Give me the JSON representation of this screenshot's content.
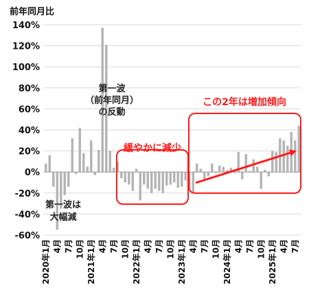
{
  "chart_data": {
    "type": "bar",
    "y_unit_label": "前年同月比",
    "ylim": [
      -60,
      140
    ],
    "y_ticks": [
      {
        "value": 140,
        "label": "140%"
      },
      {
        "value": 120,
        "label": "120%"
      },
      {
        "value": 100,
        "label": "100%"
      },
      {
        "value": 80,
        "label": "80%"
      },
      {
        "value": 60,
        "label": "60%"
      },
      {
        "value": 40,
        "label": "40%"
      },
      {
        "value": 20,
        "label": "20%"
      },
      {
        "value": 0,
        "label": "0%"
      },
      {
        "value": -20,
        "label": "-20%"
      },
      {
        "value": -40,
        "label": "-40%"
      },
      {
        "value": -60,
        "label": "-60%"
      }
    ],
    "grid": true,
    "x_ticks": [
      {
        "index": 0,
        "label": "2020年1月"
      },
      {
        "index": 3,
        "label": "4月"
      },
      {
        "index": 6,
        "label": "7月"
      },
      {
        "index": 9,
        "label": "10月"
      },
      {
        "index": 12,
        "label": "2021年1月"
      },
      {
        "index": 15,
        "label": "4月"
      },
      {
        "index": 18,
        "label": "7月"
      },
      {
        "index": 21,
        "label": "10月"
      },
      {
        "index": 24,
        "label": "2022年1月"
      },
      {
        "index": 27,
        "label": "4月"
      },
      {
        "index": 30,
        "label": "7月"
      },
      {
        "index": 33,
        "label": "10月"
      },
      {
        "index": 36,
        "label": "2023年1月"
      },
      {
        "index": 39,
        "label": "4月"
      },
      {
        "index": 42,
        "label": "7月"
      },
      {
        "index": 45,
        "label": "10月"
      },
      {
        "index": 48,
        "label": "2024年1月"
      },
      {
        "index": 51,
        "label": "4月"
      },
      {
        "index": 54,
        "label": "7月"
      },
      {
        "index": 57,
        "label": "10月"
      },
      {
        "index": 60,
        "label": "2025年1月"
      },
      {
        "index": 63,
        "label": "4月"
      },
      {
        "index": 66,
        "label": "7月"
      }
    ],
    "values": [
      8,
      16,
      -14,
      -55,
      -35,
      -22,
      -14,
      32,
      -2,
      42,
      18,
      5,
      30,
      -3,
      21,
      137,
      121,
      20,
      4,
      10,
      -6,
      -10,
      -12,
      -18,
      3,
      -27,
      -12,
      -16,
      -20,
      -16,
      -18,
      -20,
      -13,
      -12,
      -10,
      -15,
      -14,
      -8,
      -16,
      -20,
      8,
      3,
      -8,
      -4,
      8,
      -1,
      6,
      5,
      2,
      4,
      -1,
      19,
      -7,
      17,
      1,
      12,
      5,
      -16,
      2,
      -4,
      20,
      19,
      32,
      30,
      25,
      38,
      30,
      44
    ],
    "colors": {
      "bar": "#b4b4b4",
      "grid": "#d9d9d9",
      "accent": "#ff1a1a",
      "axis": "#888888"
    },
    "annotations": {
      "first_wave_rebound": [
        "第一波",
        "（前年同月）",
        "の反動"
      ],
      "first_wave_drop": [
        "第一波は",
        "大幅減"
      ],
      "gradual_decrease": "緩やかに減少",
      "two_year_increase": "この2年は増加傾向"
    }
  }
}
